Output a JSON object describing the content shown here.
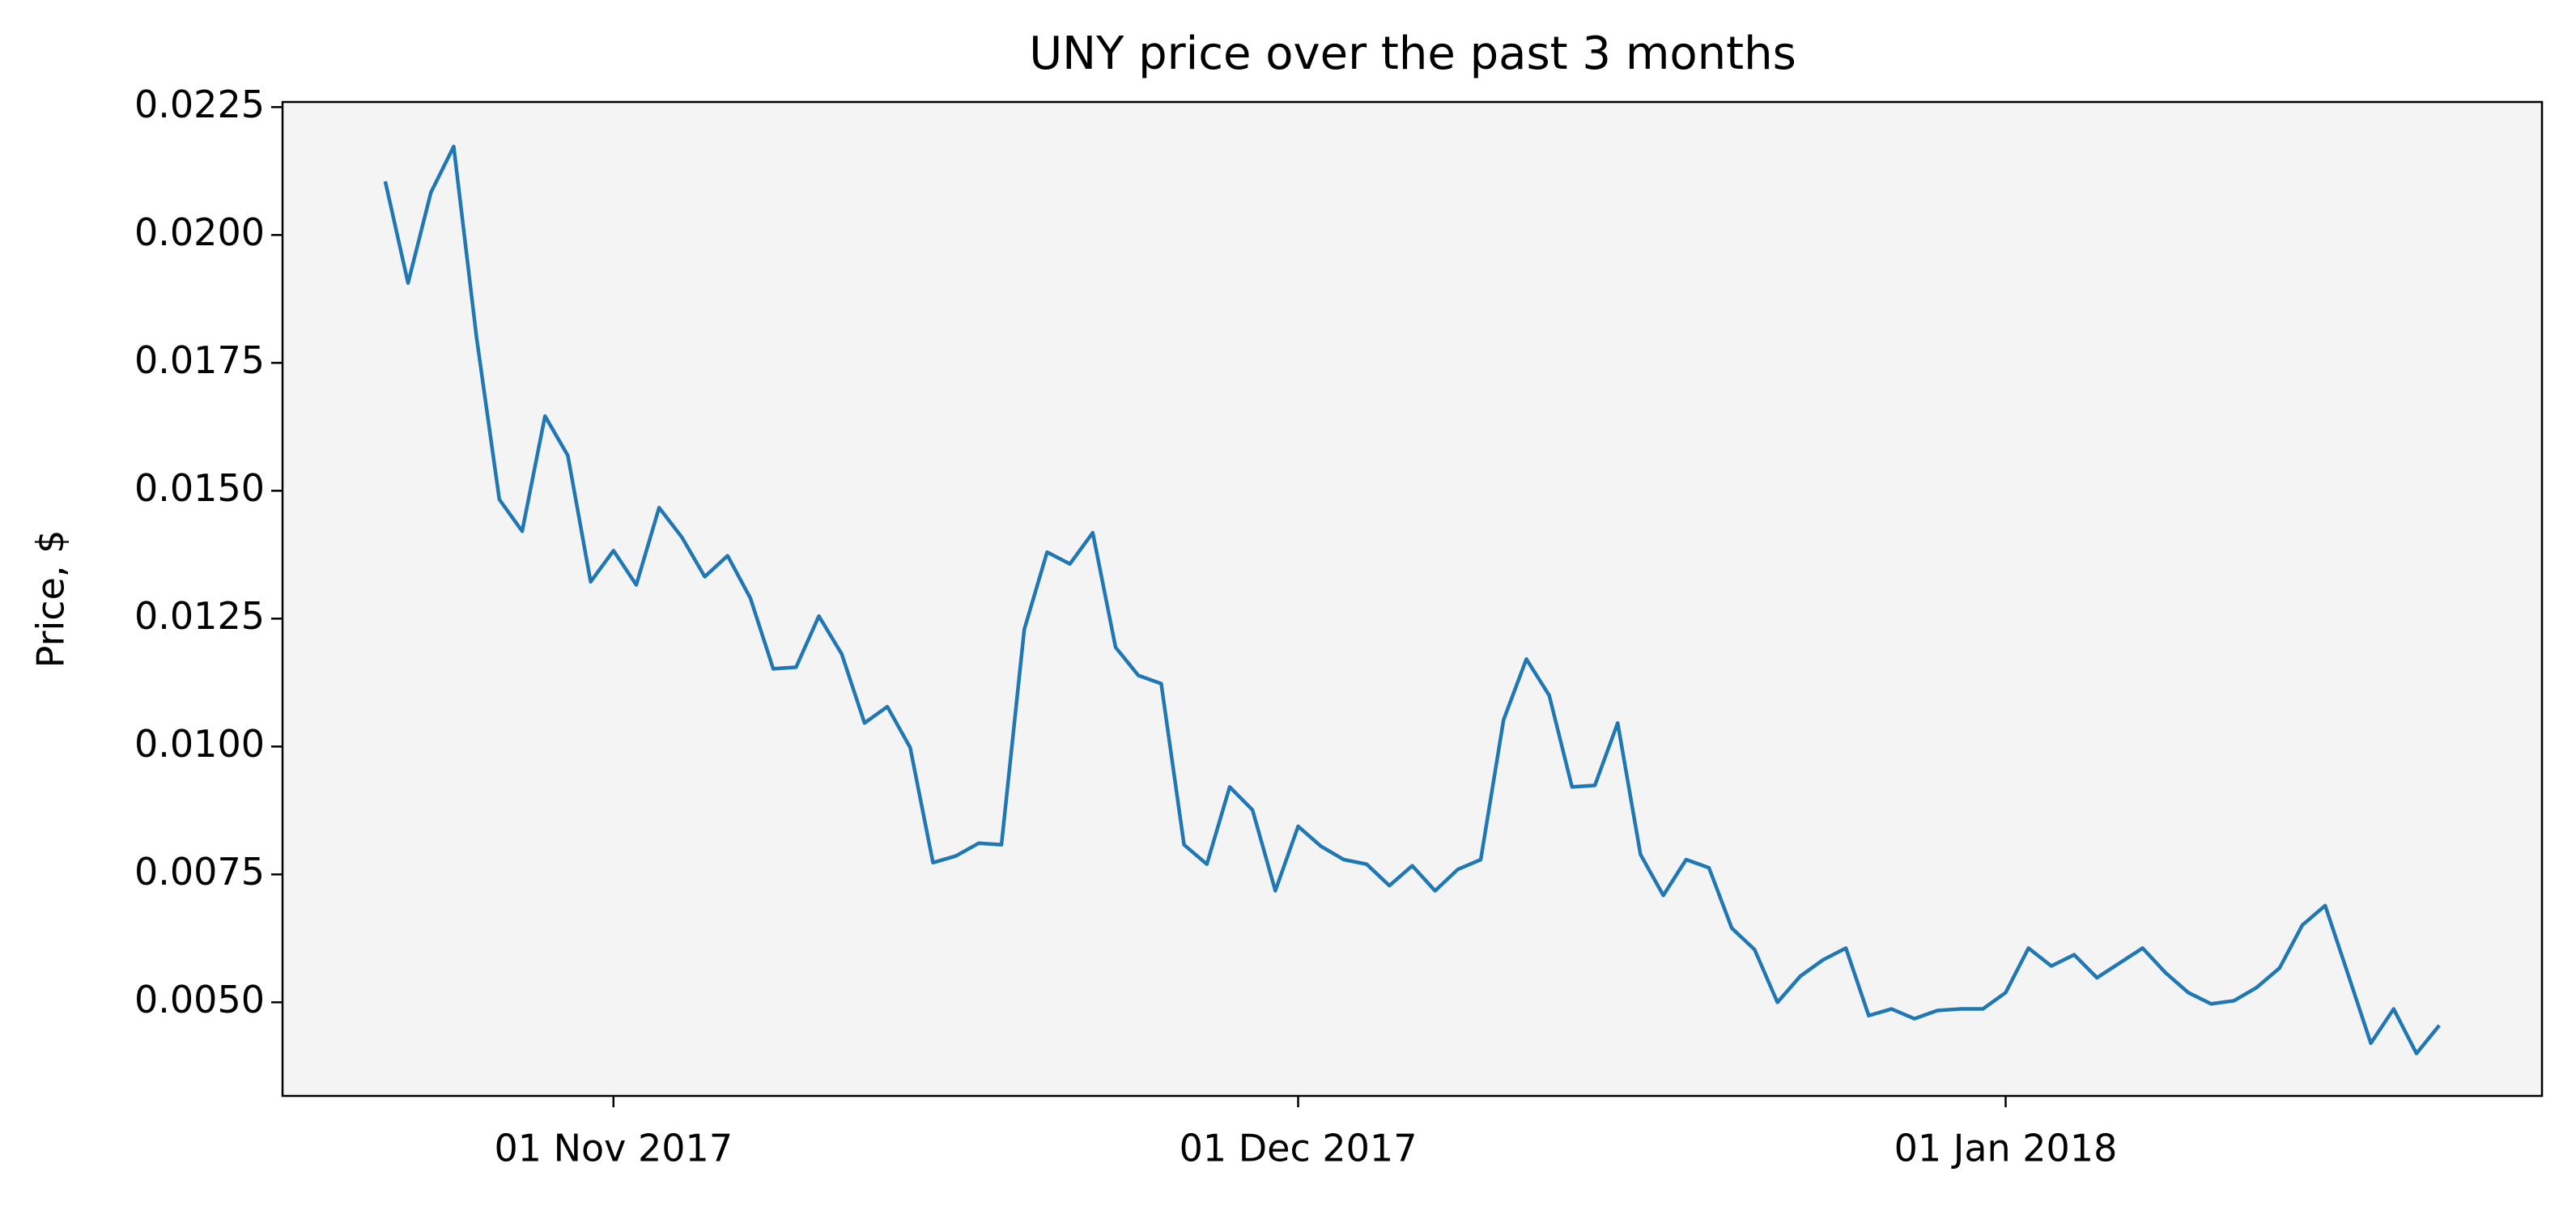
{
  "chart_data": {
    "type": "line",
    "title": "UNY price over the past 3 months",
    "ylabel": "Price, $",
    "x": [
      "2017-10-22",
      "2017-10-23",
      "2017-10-24",
      "2017-10-25",
      "2017-10-26",
      "2017-10-27",
      "2017-10-28",
      "2017-10-29",
      "2017-10-30",
      "2017-10-31",
      "2017-11-01",
      "2017-11-02",
      "2017-11-03",
      "2017-11-04",
      "2017-11-05",
      "2017-11-06",
      "2017-11-07",
      "2017-11-08",
      "2017-11-09",
      "2017-11-10",
      "2017-11-11",
      "2017-11-12",
      "2017-11-13",
      "2017-11-14",
      "2017-11-15",
      "2017-11-16",
      "2017-11-17",
      "2017-11-18",
      "2017-11-19",
      "2017-11-20",
      "2017-11-21",
      "2017-11-22",
      "2017-11-23",
      "2017-11-24",
      "2017-11-25",
      "2017-11-26",
      "2017-11-27",
      "2017-11-28",
      "2017-11-29",
      "2017-11-30",
      "2017-12-01",
      "2017-12-02",
      "2017-12-03",
      "2017-12-04",
      "2017-12-05",
      "2017-12-06",
      "2017-12-07",
      "2017-12-08",
      "2017-12-09",
      "2017-12-10",
      "2017-12-11",
      "2017-12-12",
      "2017-12-13",
      "2017-12-14",
      "2017-12-15",
      "2017-12-16",
      "2017-12-17",
      "2017-12-18",
      "2017-12-19",
      "2017-12-20",
      "2017-12-21",
      "2017-12-22",
      "2017-12-23",
      "2017-12-24",
      "2017-12-25",
      "2017-12-26",
      "2017-12-27",
      "2017-12-28",
      "2017-12-29",
      "2017-12-30",
      "2017-12-31",
      "2018-01-01",
      "2018-01-02",
      "2018-01-03",
      "2018-01-04",
      "2018-01-05",
      "2018-01-06",
      "2018-01-07",
      "2018-01-08",
      "2018-01-09",
      "2018-01-10",
      "2018-01-11",
      "2018-01-12",
      "2018-01-13",
      "2018-01-14",
      "2018-01-15",
      "2018-01-16",
      "2018-01-17",
      "2018-01-18",
      "2018-01-19",
      "2018-01-20"
    ],
    "series": [
      {
        "name": "UNY",
        "color": "#1f77b4",
        "values": [
          0.02105,
          0.01906,
          0.02083,
          0.02173,
          0.018,
          0.01483,
          0.01421,
          0.01646,
          0.01569,
          0.01322,
          0.01383,
          0.01316,
          0.01467,
          0.01409,
          0.01332,
          0.01373,
          0.0129,
          0.01152,
          0.01155,
          0.01255,
          0.01181,
          0.01046,
          0.01078,
          0.00998,
          0.00773,
          0.00786,
          0.00811,
          0.00808,
          0.01229,
          0.0138,
          0.01357,
          0.01418,
          0.01194,
          0.01139,
          0.01123,
          0.00808,
          0.0077,
          0.00921,
          0.00876,
          0.00718,
          0.00844,
          0.00805,
          0.00779,
          0.0077,
          0.00728,
          0.00767,
          0.00718,
          0.0076,
          0.00779,
          0.01052,
          0.01171,
          0.011,
          0.00921,
          0.00924,
          0.01046,
          0.00789,
          0.00709,
          0.00779,
          0.00763,
          0.00645,
          0.00603,
          0.005,
          0.00551,
          0.00583,
          0.00606,
          0.00474,
          0.00487,
          0.00468,
          0.00484,
          0.00487,
          0.00487,
          0.00519,
          0.00606,
          0.00571,
          0.00593,
          0.00548,
          0.00577,
          0.00606,
          0.00558,
          0.00519,
          0.00497,
          0.00503,
          0.00529,
          0.00567,
          0.00651,
          0.00689,
          0.00555,
          0.0042,
          0.00487,
          0.004,
          0.00455
        ]
      }
    ],
    "xlim": [
      "2017-10-17T12:00:00Z",
      "2018-01-24T12:00:00Z"
    ],
    "xticks": [
      {
        "value": "2017-11-01",
        "label": "01 Nov 2017"
      },
      {
        "value": "2017-12-01",
        "label": "01 Dec 2017"
      },
      {
        "value": "2018-01-01",
        "label": "01 Jan 2018"
      }
    ],
    "ylim": [
      0.00317,
      0.0226
    ],
    "yticks": [
      {
        "value": 0.005,
        "label": "0.0050"
      },
      0.0075,
      {
        "value": 0.01,
        "label": "0.0100"
      },
      0.0125,
      {
        "value": 0.015,
        "label": "0.0150"
      },
      0.0175,
      {
        "value": 0.02,
        "label": "0.0200"
      },
      0.0225
    ],
    "background": "#f4f4f4"
  }
}
